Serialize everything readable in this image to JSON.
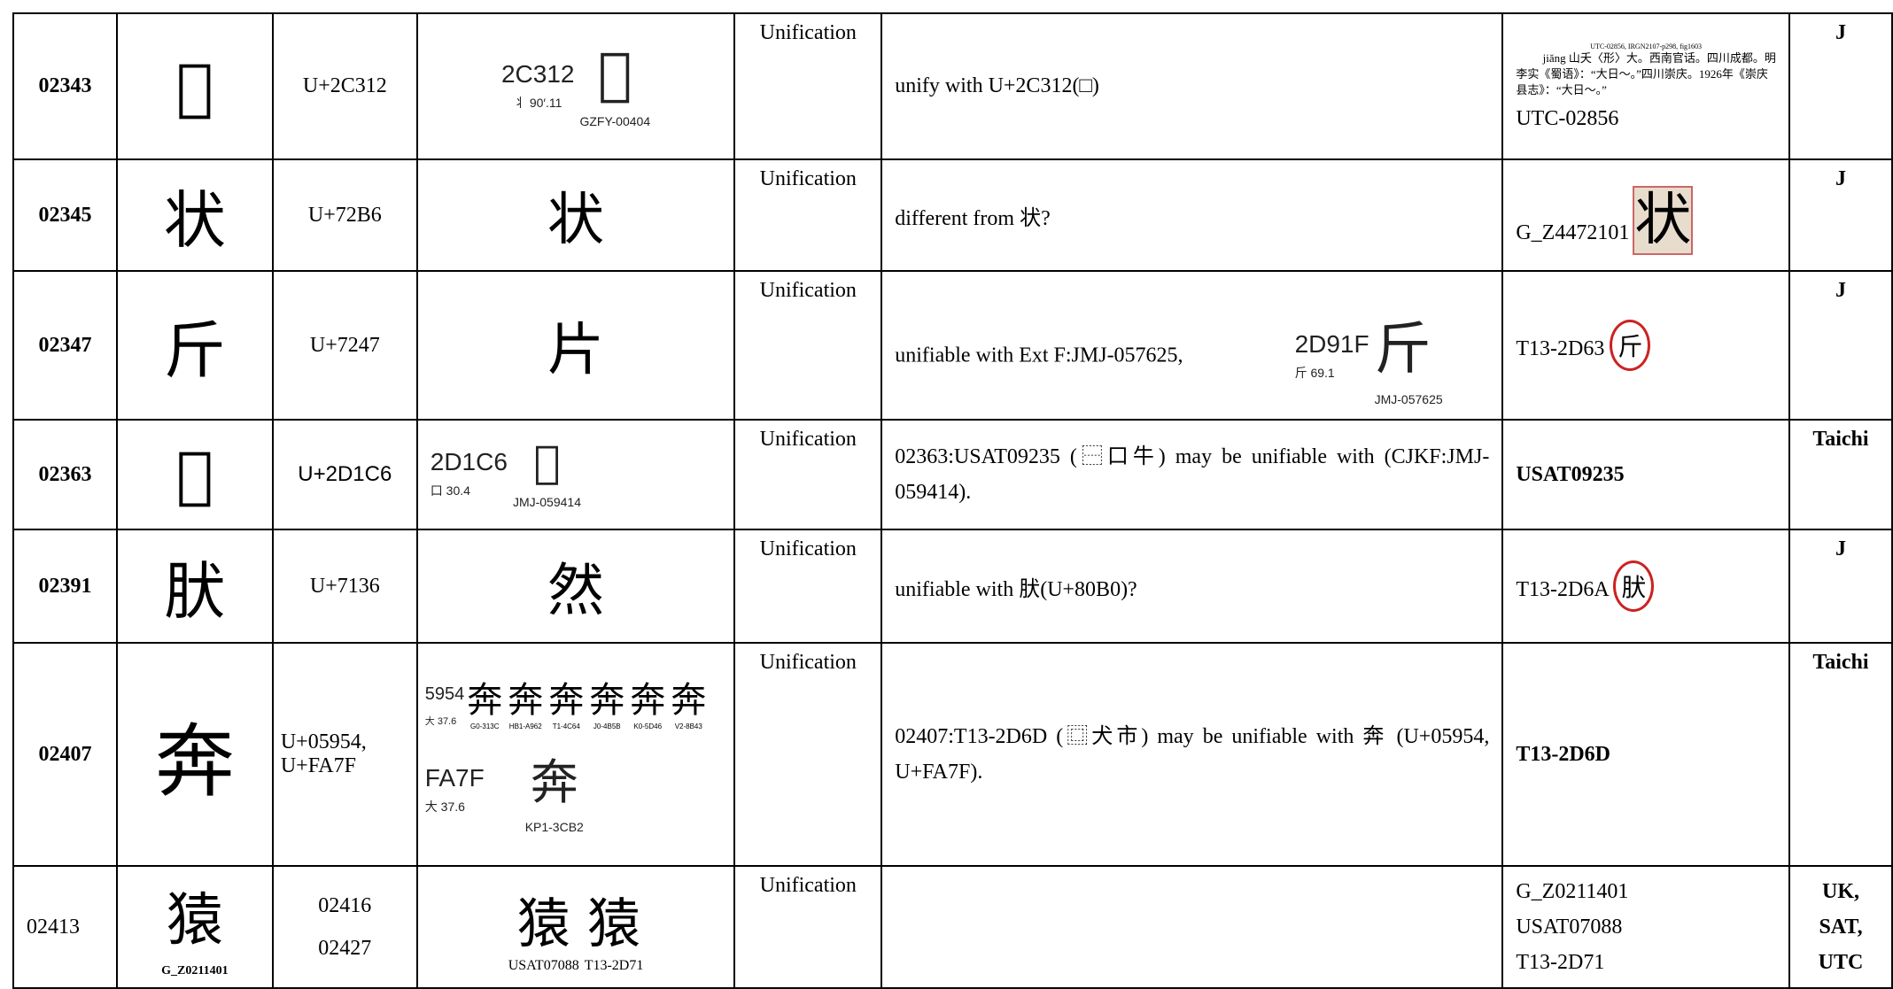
{
  "table": {
    "rows": [
      {
        "id": "02343",
        "glyph": "𬌒",
        "code": [
          "U+2C312"
        ],
        "evidence": {
          "code": "2C312",
          "radical": "丬 90′.11",
          "glyph": "𬌒",
          "source": "GZFY-00404"
        },
        "type": "Unification",
        "comment": "unify with U+2C312(□)",
        "source": {
          "header": "UTC-02856, IRGN2107-p298, fig1603",
          "entry": "【𬌒】jiǎng 山夭〈形〉大。西南官话。四川成都。明李实《蜀语》：“大日～。”四川崇庆。1926年《崇庆县志》：“大日～。”",
          "label": "UTC-02856"
        },
        "reviewer": [
          "J"
        ]
      },
      {
        "id": "02345",
        "glyph": "状",
        "code": [
          "U+72B6"
        ],
        "evidence": {
          "glyph": "状"
        },
        "type": "Unification",
        "comment": "different from 状?",
        "source": {
          "label": "G_Z4472101",
          "glyph": "状"
        },
        "reviewer": [
          "J"
        ]
      },
      {
        "id": "02347",
        "glyph": "斤",
        "code": [
          "U+7247"
        ],
        "evidence": {
          "glyph": "片"
        },
        "type": "Unification",
        "comment": "unifiable with Ext F:JMJ-057625,",
        "comment_image": {
          "code": "2D91F",
          "radical": "斤 69.1",
          "glyph": "斤",
          "source": "JMJ-057625"
        },
        "source": {
          "label": "T13-2D63",
          "glyph": "斤"
        },
        "reviewer": [
          "J"
        ]
      },
      {
        "id": "02363",
        "glyph": "𭇆",
        "code": [
          "U+2D1C6"
        ],
        "evidence": {
          "code": "2D1C6",
          "radical": "口 30.4",
          "glyph": "𭇆",
          "source": "JMJ-059414"
        },
        "type": "Unification",
        "comment": "02363:USAT09235 (⿱口牛) may be unifiable with (CJKF:JMJ-059414).",
        "source": {
          "label": "USAT09235"
        },
        "reviewer": [
          "Taichi"
        ]
      },
      {
        "id": "02391",
        "glyph": "肰",
        "code": [
          "U+7136"
        ],
        "evidence": {
          "glyph": "然"
        },
        "type": "Unification",
        "comment": "unifiable with 肰(U+80B0)?",
        "source": {
          "label": "T13-2D6A",
          "glyph": "肰"
        },
        "reviewer": [
          "J"
        ]
      },
      {
        "id": "02407",
        "glyph": "奔",
        "code": [
          "U+05954,",
          "U+FA7F"
        ],
        "evidence": {
          "code": "5954",
          "radical": "大 37.6",
          "glyphs": [
            {
              "glyph": "奔",
              "source": "G0-313C"
            },
            {
              "glyph": "奔",
              "source": "HB1-A962"
            },
            {
              "glyph": "奔",
              "source": "T1-4C64"
            },
            {
              "glyph": "奔",
              "source": "J0-4B5B"
            },
            {
              "glyph": "奔",
              "source": "K0-5D46"
            },
            {
              "glyph": "奔",
              "source": "V2-8B43"
            }
          ],
          "code2": "FA7F",
          "radical2": "大 37.6",
          "glyph2": "奔",
          "source2": "KP1-3CB2"
        },
        "type": "Unification",
        "comment": "02407:T13-2D6D (⿴犬市) may be unifiable with 奔 (U+05954, U+FA7F).",
        "source": {
          "label": "T13-2D6D"
        },
        "reviewer": [
          "Taichi"
        ]
      },
      {
        "id": "02413",
        "glyph": "猿",
        "glyph_label": "G_Z0211401",
        "code": [
          "02416",
          "02427"
        ],
        "evidence": {
          "glyphs": [
            {
              "glyph": "猿",
              "source": "USAT07088"
            },
            {
              "glyph": "猿",
              "source": "T13-2D71"
            }
          ]
        },
        "type": "Unification",
        "source": {
          "lines": [
            "G_Z0211401",
            "USAT07088",
            "T13-2D71"
          ]
        },
        "reviewer": [
          "UK,",
          "SAT,",
          "UTC"
        ]
      }
    ]
  }
}
